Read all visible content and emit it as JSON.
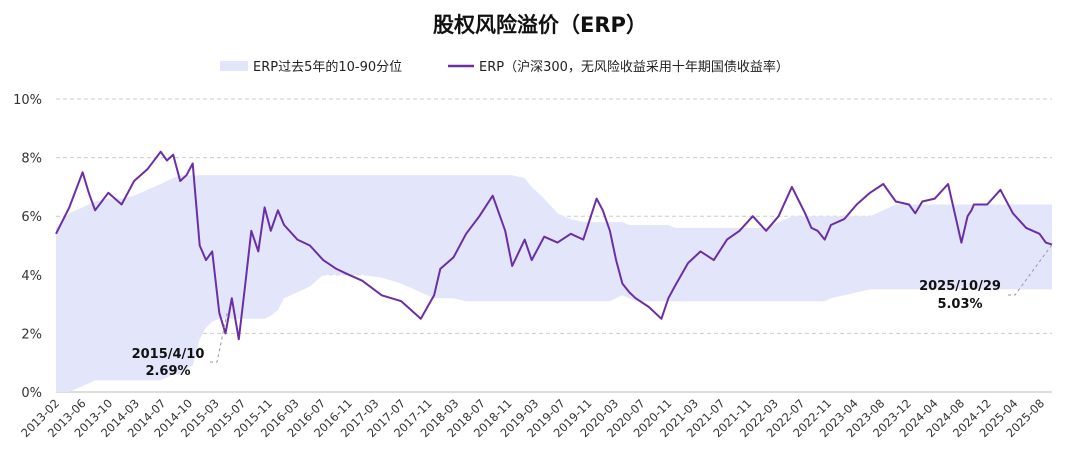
{
  "chart_data": {
    "type": "line",
    "title": "股权风险溢价（ERP）",
    "xlabel": "",
    "ylabel": "",
    "ylim": [
      0,
      10
    ],
    "y_ticks": [
      "0%",
      "2%",
      "4%",
      "6%",
      "8%",
      "10%"
    ],
    "x_tick_labels": [
      "2013-02",
      "2013-06",
      "2013-10",
      "2014-03",
      "2014-07",
      "2014-10",
      "2015-03",
      "2015-07",
      "2015-11",
      "2016-03",
      "2016-07",
      "2016-11",
      "2017-03",
      "2017-07",
      "2017-11",
      "2018-03",
      "2018-07",
      "2018-11",
      "2019-03",
      "2019-07",
      "2019-11",
      "2020-03",
      "2020-07",
      "2020-11",
      "2021-03",
      "2021-07",
      "2021-11",
      "2022-03",
      "2022-07",
      "2022-11",
      "2023-04",
      "2023-08",
      "2023-12",
      "2024-04",
      "2024-08",
      "2024-12",
      "2025-04",
      "2025-08"
    ],
    "colors": {
      "line": "#6a2fa6",
      "band": "#e3e6fb",
      "grid": "#cccccc",
      "leader": "#999999"
    },
    "legend": {
      "band_label": "ERP过去5年的10-90分位",
      "line_label": "ERP（沪深300，无风险收益采用十年期国债收益率）",
      "position": "top-center"
    },
    "x": [
      2013.08,
      2013.25,
      2013.42,
      2013.5,
      2013.58,
      2013.75,
      2013.92,
      2014.08,
      2014.25,
      2014.42,
      2014.5,
      2014.58,
      2014.67,
      2014.75,
      2014.83,
      2014.92,
      2015.0,
      2015.08,
      2015.17,
      2015.25,
      2015.33,
      2015.42,
      2015.5,
      2015.58,
      2015.67,
      2015.75,
      2015.83,
      2015.92,
      2016.0,
      2016.17,
      2016.33,
      2016.5,
      2016.67,
      2016.83,
      2017.0,
      2017.25,
      2017.5,
      2017.75,
      2017.92,
      2018.0,
      2018.17,
      2018.33,
      2018.5,
      2018.67,
      2018.83,
      2018.92,
      2019.08,
      2019.17,
      2019.33,
      2019.5,
      2019.67,
      2019.83,
      2020.0,
      2020.08,
      2020.17,
      2020.25,
      2020.33,
      2020.42,
      2020.5,
      2020.67,
      2020.83,
      2020.92,
      2021.0,
      2021.17,
      2021.33,
      2021.5,
      2021.67,
      2021.83,
      2022.0,
      2022.17,
      2022.33,
      2022.5,
      2022.67,
      2022.75,
      2022.83,
      2022.92,
      2023.0,
      2023.17,
      2023.33,
      2023.5,
      2023.67,
      2023.83,
      2024.0,
      2024.08,
      2024.17,
      2024.33,
      2024.5,
      2024.67,
      2024.75,
      2024.8,
      2024.83,
      2025.0,
      2025.17,
      2025.33,
      2025.5,
      2025.67,
      2025.75,
      2025.83
    ],
    "series": [
      {
        "name": "ERP（沪深300，无风险收益采用十年期国债收益率）",
        "values": [
          5.4,
          6.3,
          7.5,
          6.8,
          6.2,
          6.8,
          6.4,
          7.2,
          7.6,
          8.2,
          7.9,
          8.1,
          7.2,
          7.4,
          7.8,
          5.0,
          4.5,
          4.8,
          2.7,
          2.0,
          3.2,
          1.8,
          3.6,
          5.5,
          4.8,
          6.3,
          5.5,
          6.2,
          5.7,
          5.2,
          5.0,
          4.5,
          4.2,
          4.0,
          3.8,
          3.3,
          3.1,
          2.5,
          3.3,
          4.2,
          4.6,
          5.4,
          6.0,
          6.7,
          5.5,
          4.3,
          5.2,
          4.5,
          5.3,
          5.1,
          5.4,
          5.2,
          6.6,
          6.2,
          5.5,
          4.5,
          3.7,
          3.4,
          3.2,
          2.9,
          2.5,
          3.2,
          3.6,
          4.4,
          4.8,
          4.5,
          5.2,
          5.5,
          6.0,
          5.5,
          6.0,
          7.0,
          6.1,
          5.6,
          5.5,
          5.2,
          5.7,
          5.9,
          6.4,
          6.8,
          7.1,
          6.5,
          6.4,
          6.1,
          6.5,
          6.6,
          7.1,
          5.1,
          6.0,
          6.2,
          6.4,
          6.4,
          6.9,
          6.1,
          5.6,
          5.4,
          5.1,
          5.03
        ]
      },
      {
        "name": "band_p90",
        "values": [
          5.6,
          6.1,
          6.3,
          6.4,
          6.5,
          6.6,
          6.6,
          6.7,
          6.9,
          7.1,
          7.2,
          7.3,
          7.4,
          7.4,
          7.4,
          7.4,
          7.4,
          7.4,
          7.4,
          7.4,
          7.4,
          7.4,
          7.4,
          7.4,
          7.4,
          7.4,
          7.4,
          7.4,
          7.4,
          7.4,
          7.4,
          7.4,
          7.4,
          7.4,
          7.4,
          7.4,
          7.4,
          7.4,
          7.4,
          7.4,
          7.4,
          7.4,
          7.4,
          7.4,
          7.4,
          7.4,
          7.3,
          7.0,
          6.6,
          6.1,
          5.9,
          5.8,
          5.8,
          5.8,
          5.8,
          5.8,
          5.8,
          5.7,
          5.7,
          5.7,
          5.7,
          5.7,
          5.6,
          5.6,
          5.6,
          5.6,
          5.6,
          5.6,
          5.6,
          5.6,
          5.8,
          6.0,
          6.0,
          6.0,
          6.0,
          6.0,
          6.0,
          6.0,
          6.0,
          6.0,
          6.2,
          6.4,
          6.4,
          6.4,
          6.4,
          6.4,
          6.4,
          6.4,
          6.4,
          6.4,
          6.4,
          6.4,
          6.4,
          6.4,
          6.4,
          6.4,
          6.4,
          6.4
        ]
      },
      {
        "name": "band_p10",
        "values": [
          0,
          0,
          0.2,
          0.3,
          0.4,
          0.4,
          0.4,
          0.4,
          0.4,
          0.4,
          0.5,
          0.6,
          0.6,
          0.8,
          0.9,
          1.8,
          2.2,
          2.4,
          2.5,
          2.5,
          2.5,
          2.5,
          2.5,
          2.5,
          2.5,
          2.5,
          2.6,
          2.8,
          3.2,
          3.4,
          3.6,
          4.0,
          4.0,
          4.0,
          4.0,
          3.9,
          3.7,
          3.4,
          3.2,
          3.2,
          3.2,
          3.1,
          3.1,
          3.1,
          3.1,
          3.1,
          3.1,
          3.1,
          3.1,
          3.1,
          3.1,
          3.1,
          3.1,
          3.1,
          3.1,
          3.2,
          3.3,
          3.2,
          3.1,
          3.1,
          3.1,
          3.1,
          3.1,
          3.1,
          3.1,
          3.1,
          3.1,
          3.1,
          3.1,
          3.1,
          3.1,
          3.1,
          3.1,
          3.1,
          3.1,
          3.1,
          3.2,
          3.3,
          3.4,
          3.5,
          3.5,
          3.5,
          3.5,
          3.5,
          3.5,
          3.5,
          3.5,
          3.5,
          3.5,
          3.5,
          3.5,
          3.5,
          3.5,
          3.5,
          3.5,
          3.5,
          3.5,
          3.5
        ]
      }
    ],
    "annotations": [
      {
        "date": "2015/4/10",
        "value": "2.69%",
        "x": 2015.27,
        "y": 2.69
      },
      {
        "date": "2025/10/29",
        "value": "5.03%",
        "x": 2025.83,
        "y": 5.03
      }
    ]
  }
}
